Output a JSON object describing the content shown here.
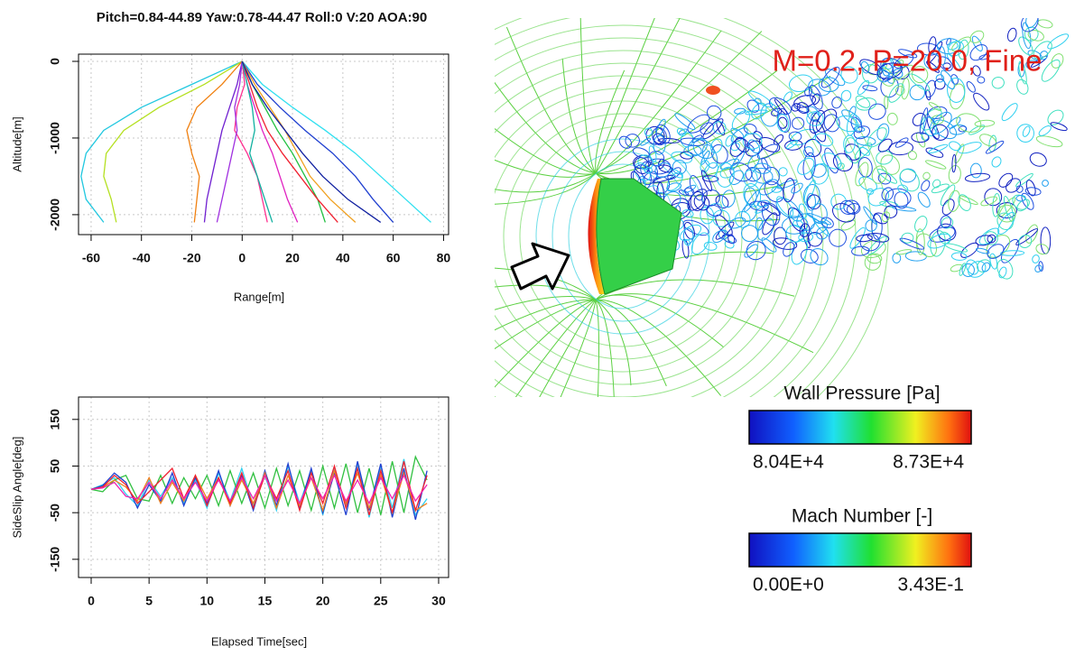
{
  "chart_data": [
    {
      "type": "line",
      "title": "Pitch=0.84-44.89 Yaw:0.78-44.47 Roll:0 V:20 AOA:90",
      "xlabel": "Range[m]",
      "ylabel": "Altitude[m]",
      "xlim": [
        -65,
        82
      ],
      "ylim": [
        -2260,
        94
      ],
      "xticks": [
        -60,
        -40,
        -20,
        0,
        20,
        40,
        60,
        80
      ],
      "yticks": [
        0,
        -1000,
        -2000
      ],
      "grid": true,
      "series": [
        {
          "color": "#22c8e0",
          "x": [
            0,
            -20,
            -40,
            -55,
            -62,
            -64,
            -62,
            -55
          ],
          "values": [
            0,
            -300,
            -600,
            -900,
            -1200,
            -1500,
            -1800,
            -2100
          ]
        },
        {
          "color": "#b4e020",
          "x": [
            0,
            -15,
            -33,
            -47,
            -54,
            -55,
            -52,
            -50
          ],
          "values": [
            0,
            -300,
            -600,
            -900,
            -1200,
            -1500,
            -1800,
            -2100
          ]
        },
        {
          "color": "#f08010",
          "x": [
            0,
            -8,
            -18,
            -22,
            -20,
            -17,
            -18,
            -19
          ],
          "values": [
            0,
            -300,
            -600,
            -900,
            -1200,
            -1500,
            -1800,
            -2100
          ]
        },
        {
          "color": "#30e0f0",
          "x": [
            0,
            8,
            20,
            33,
            45,
            55,
            65,
            75
          ],
          "values": [
            0,
            -300,
            -600,
            -900,
            -1200,
            -1500,
            -1800,
            -2100
          ]
        },
        {
          "color": "#2040d0",
          "x": [
            0,
            6,
            15,
            25,
            36,
            45,
            52,
            60
          ],
          "values": [
            0,
            -300,
            -600,
            -900,
            -1200,
            -1500,
            -1800,
            -2100
          ]
        },
        {
          "color": "#e020c0",
          "x": [
            0,
            2,
            5,
            8,
            12,
            15,
            18,
            22
          ],
          "values": [
            0,
            -300,
            -600,
            -900,
            -1200,
            -1500,
            -1800,
            -2100
          ]
        },
        {
          "color": "#7020d0",
          "x": [
            0,
            -2,
            -5,
            -8,
            -10,
            -12,
            -14,
            -15
          ],
          "values": [
            0,
            -300,
            -600,
            -900,
            -1200,
            -1500,
            -1800,
            -2100
          ]
        },
        {
          "color": "#20c040",
          "x": [
            0,
            4,
            9,
            14,
            20,
            25,
            30,
            33
          ],
          "values": [
            0,
            -300,
            -600,
            -900,
            -1200,
            -1500,
            -1800,
            -2100
          ]
        },
        {
          "color": "#f02030",
          "x": [
            0,
            3,
            6,
            10,
            16,
            23,
            30,
            38
          ],
          "values": [
            0,
            -300,
            -600,
            -900,
            -1200,
            -1500,
            -1800,
            -2100
          ]
        },
        {
          "color": "#ff3090",
          "x": [
            0,
            1,
            -2,
            -3,
            2,
            6,
            8,
            10
          ],
          "values": [
            0,
            -300,
            -600,
            -900,
            -1200,
            -1500,
            -1800,
            -2100
          ]
        },
        {
          "color": "#a030e0",
          "x": [
            0,
            -1,
            -3,
            -2,
            -4,
            -6,
            -8,
            -10
          ],
          "values": [
            0,
            -300,
            -600,
            -900,
            -1200,
            -1500,
            -1800,
            -2100
          ]
        },
        {
          "color": "#f0a020",
          "x": [
            0,
            5,
            11,
            17,
            22,
            27,
            35,
            45
          ],
          "values": [
            0,
            -300,
            -600,
            -900,
            -1200,
            -1500,
            -1800,
            -2100
          ]
        },
        {
          "color": "#10b0a0",
          "x": [
            0,
            2,
            4,
            5,
            3,
            6,
            9,
            12
          ],
          "values": [
            0,
            -300,
            -600,
            -900,
            -1200,
            -1500,
            -1800,
            -2100
          ]
        },
        {
          "color": "#1020a0",
          "x": [
            0,
            4,
            10,
            17,
            24,
            32,
            42,
            55
          ],
          "values": [
            0,
            -300,
            -600,
            -900,
            -1200,
            -1500,
            -1800,
            -2100
          ]
        }
      ]
    },
    {
      "type": "line",
      "xlabel": "Elapsed Time[sec]",
      "ylabel": "SideSlip Angle[deg]",
      "xlim": [
        -1.09,
        30.86
      ],
      "ylim": [
        -189,
        198
      ],
      "xticks": [
        0,
        5,
        10,
        15,
        20,
        25,
        30
      ],
      "yticks": [
        150,
        50,
        -50,
        -150
      ],
      "grid": true,
      "series": [
        {
          "color": "#30d0f0",
          "x": [
            0,
            1,
            2,
            3,
            4,
            5,
            6,
            7,
            8,
            9,
            10,
            11,
            12,
            13,
            14,
            15,
            16,
            17,
            18,
            19,
            20,
            21,
            22,
            23,
            24,
            25,
            26,
            27,
            28,
            29
          ],
          "values": [
            0,
            10,
            25,
            -10,
            -35,
            20,
            -15,
            25,
            -30,
            20,
            -40,
            35,
            -25,
            45,
            -35,
            30,
            -45,
            50,
            -30,
            40,
            -55,
            45,
            -35,
            55,
            -60,
            50,
            -40,
            65,
            -55,
            -20
          ]
        },
        {
          "color": "#30c040",
          "x": [
            0,
            1,
            2,
            3,
            4,
            5,
            6,
            7,
            8,
            9,
            10,
            11,
            12,
            13,
            14,
            15,
            16,
            17,
            18,
            19,
            20,
            21,
            22,
            23,
            24,
            25,
            26,
            27,
            28,
            29
          ],
          "values": [
            0,
            -5,
            20,
            30,
            -20,
            -25,
            30,
            -30,
            25,
            -20,
            30,
            -35,
            40,
            -30,
            35,
            -40,
            45,
            -35,
            40,
            -45,
            50,
            -40,
            55,
            -50,
            45,
            -55,
            60,
            -50,
            70,
            20
          ]
        },
        {
          "color": "#2040d0",
          "x": [
            0,
            1,
            2,
            3,
            4,
            5,
            6,
            7,
            8,
            9,
            10,
            11,
            12,
            13,
            14,
            15,
            16,
            17,
            18,
            19,
            20,
            21,
            22,
            23,
            24,
            25,
            26,
            27,
            28,
            29
          ],
          "values": [
            0,
            8,
            35,
            15,
            -40,
            10,
            -25,
            35,
            -35,
            25,
            -30,
            40,
            -35,
            30,
            -45,
            40,
            -35,
            55,
            -40,
            45,
            -50,
            35,
            -55,
            60,
            -45,
            55,
            -60,
            45,
            -65,
            40
          ]
        },
        {
          "color": "#f08020",
          "x": [
            0,
            1,
            2,
            3,
            4,
            5,
            6,
            7,
            8,
            9,
            10,
            11,
            12,
            13,
            14,
            15,
            16,
            17,
            18,
            19,
            20,
            21,
            22,
            23,
            24,
            25,
            26,
            27,
            28,
            29
          ],
          "values": [
            0,
            5,
            20,
            5,
            -25,
            25,
            -30,
            15,
            -25,
            30,
            -20,
            25,
            -35,
            20,
            -30,
            35,
            -40,
            30,
            -35,
            25,
            -45,
            40,
            -30,
            35,
            -40,
            30,
            -50,
            35,
            -45,
            -30
          ]
        },
        {
          "color": "#f02030",
          "x": [
            0,
            1,
            2,
            3,
            4,
            5,
            6,
            7,
            8,
            9,
            10,
            11,
            12,
            13,
            14,
            15,
            16,
            17,
            18,
            19,
            20,
            21,
            22,
            23,
            24,
            25,
            26,
            27,
            28,
            29
          ],
          "values": [
            0,
            5,
            30,
            10,
            -30,
            -5,
            20,
            45,
            -20,
            30,
            -35,
            25,
            -30,
            35,
            -40,
            30,
            -20,
            40,
            -45,
            35,
            -30,
            50,
            -40,
            45,
            -55,
            40,
            -50,
            60,
            -45,
            30
          ]
        },
        {
          "color": "#f020b0",
          "x": [
            0,
            1,
            2,
            3,
            4,
            5,
            6,
            7,
            8,
            9,
            10,
            11,
            12,
            13,
            14,
            15,
            16,
            17,
            18,
            19,
            20,
            21,
            22,
            23,
            24,
            25,
            26,
            27,
            28,
            29
          ],
          "values": [
            0,
            3,
            15,
            -15,
            -20,
            15,
            -20,
            20,
            -20,
            15,
            -25,
            20,
            -25,
            25,
            -20,
            30,
            -25,
            20,
            -30,
            25,
            -20,
            30,
            -25,
            20,
            -30,
            25,
            -20,
            30,
            -25,
            10
          ]
        }
      ]
    }
  ],
  "figure": {
    "caption": "M=0.2, P=20.0, Fine",
    "colorbars": [
      {
        "title": "Wall Pressure [Pa]",
        "min_label": "8.04E+4",
        "max_label": "8.73E+4"
      },
      {
        "title": "Mach Number [-]",
        "min_label": "0.00E+0",
        "max_label": "3.43E-1"
      }
    ]
  }
}
